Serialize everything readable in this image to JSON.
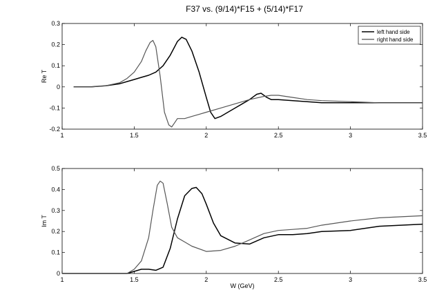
{
  "title": "F37 vs. (9/14)*F15 + (5/14)*F17",
  "legend": {
    "placement": "top-right",
    "entries": [
      {
        "label": "left hand side",
        "color": "#000000"
      },
      {
        "label": "right hand side",
        "color": "#555555"
      }
    ]
  },
  "chart_data": [
    {
      "type": "line",
      "ylabel": "Re T",
      "xlabel": "",
      "xlim": [
        1,
        3.5
      ],
      "ylim": [
        -0.2,
        0.3
      ],
      "xticks": [
        "1",
        "1.5",
        "2",
        "2.5",
        "3",
        "3.5"
      ],
      "yticks": [
        "-0.2",
        "-0.1",
        "0",
        "0.1",
        "0.2",
        "0.3"
      ],
      "grid": false,
      "legend": true,
      "series": [
        {
          "name": "left hand side",
          "color": "#000000",
          "x": [
            1.08,
            1.2,
            1.3,
            1.4,
            1.45,
            1.5,
            1.55,
            1.6,
            1.65,
            1.7,
            1.75,
            1.8,
            1.83,
            1.86,
            1.9,
            1.95,
            2.0,
            2.03,
            2.06,
            2.1,
            2.15,
            2.2,
            2.25,
            2.3,
            2.35,
            2.38,
            2.42,
            2.45,
            2.5,
            2.6,
            2.7,
            2.8,
            3.0,
            3.2,
            3.5
          ],
          "y": [
            0.0,
            0.0,
            0.005,
            0.015,
            0.025,
            0.035,
            0.045,
            0.055,
            0.07,
            0.1,
            0.15,
            0.215,
            0.235,
            0.225,
            0.17,
            0.07,
            -0.05,
            -0.12,
            -0.15,
            -0.14,
            -0.12,
            -0.1,
            -0.08,
            -0.06,
            -0.035,
            -0.03,
            -0.05,
            -0.06,
            -0.06,
            -0.065,
            -0.07,
            -0.075,
            -0.075,
            -0.075,
            -0.075
          ]
        },
        {
          "name": "right hand side",
          "color": "#555555",
          "x": [
            1.08,
            1.2,
            1.3,
            1.4,
            1.45,
            1.5,
            1.55,
            1.58,
            1.61,
            1.63,
            1.65,
            1.68,
            1.71,
            1.74,
            1.76,
            1.78,
            1.8,
            1.85,
            1.9,
            1.95,
            2.0,
            2.1,
            2.2,
            2.3,
            2.4,
            2.45,
            2.5,
            2.6,
            2.7,
            2.8,
            3.0,
            3.2,
            3.5
          ],
          "y": [
            0.0,
            0.0,
            0.005,
            0.02,
            0.04,
            0.07,
            0.12,
            0.17,
            0.21,
            0.22,
            0.19,
            0.05,
            -0.12,
            -0.18,
            -0.19,
            -0.17,
            -0.15,
            -0.15,
            -0.14,
            -0.13,
            -0.12,
            -0.1,
            -0.08,
            -0.06,
            -0.045,
            -0.04,
            -0.04,
            -0.05,
            -0.06,
            -0.065,
            -0.07,
            -0.075,
            -0.075
          ]
        }
      ]
    },
    {
      "type": "line",
      "ylabel": "Im T",
      "xlabel": "W (GeV)",
      "xlim": [
        1,
        3.5
      ],
      "ylim": [
        0,
        0.5
      ],
      "xticks": [
        "1",
        "1.5",
        "2",
        "2.5",
        "3",
        "3.5"
      ],
      "yticks": [
        "0",
        "0.1",
        "0.2",
        "0.3",
        "0.4",
        "0.5"
      ],
      "grid": false,
      "legend": false,
      "series": [
        {
          "name": "left hand side",
          "color": "#000000",
          "x": [
            1.0,
            1.3,
            1.45,
            1.5,
            1.55,
            1.6,
            1.65,
            1.7,
            1.75,
            1.8,
            1.85,
            1.9,
            1.93,
            1.97,
            2.0,
            2.05,
            2.1,
            2.2,
            2.3,
            2.4,
            2.5,
            2.6,
            2.7,
            2.8,
            3.0,
            3.2,
            3.5
          ],
          "y": [
            0.0,
            0.0,
            0.0,
            0.01,
            0.02,
            0.02,
            0.015,
            0.03,
            0.12,
            0.26,
            0.37,
            0.405,
            0.41,
            0.38,
            0.33,
            0.24,
            0.18,
            0.145,
            0.14,
            0.17,
            0.185,
            0.185,
            0.19,
            0.2,
            0.205,
            0.225,
            0.235
          ]
        },
        {
          "name": "right hand side",
          "color": "#555555",
          "x": [
            1.0,
            1.3,
            1.45,
            1.5,
            1.55,
            1.6,
            1.63,
            1.66,
            1.68,
            1.7,
            1.73,
            1.76,
            1.8,
            1.85,
            1.9,
            2.0,
            2.1,
            2.2,
            2.3,
            2.4,
            2.5,
            2.6,
            2.7,
            2.8,
            3.0,
            3.2,
            3.5
          ],
          "y": [
            0.0,
            0.0,
            0.0,
            0.02,
            0.06,
            0.17,
            0.3,
            0.42,
            0.44,
            0.43,
            0.33,
            0.22,
            0.17,
            0.15,
            0.13,
            0.105,
            0.11,
            0.13,
            0.16,
            0.19,
            0.205,
            0.21,
            0.215,
            0.23,
            0.25,
            0.265,
            0.275
          ]
        }
      ]
    }
  ]
}
